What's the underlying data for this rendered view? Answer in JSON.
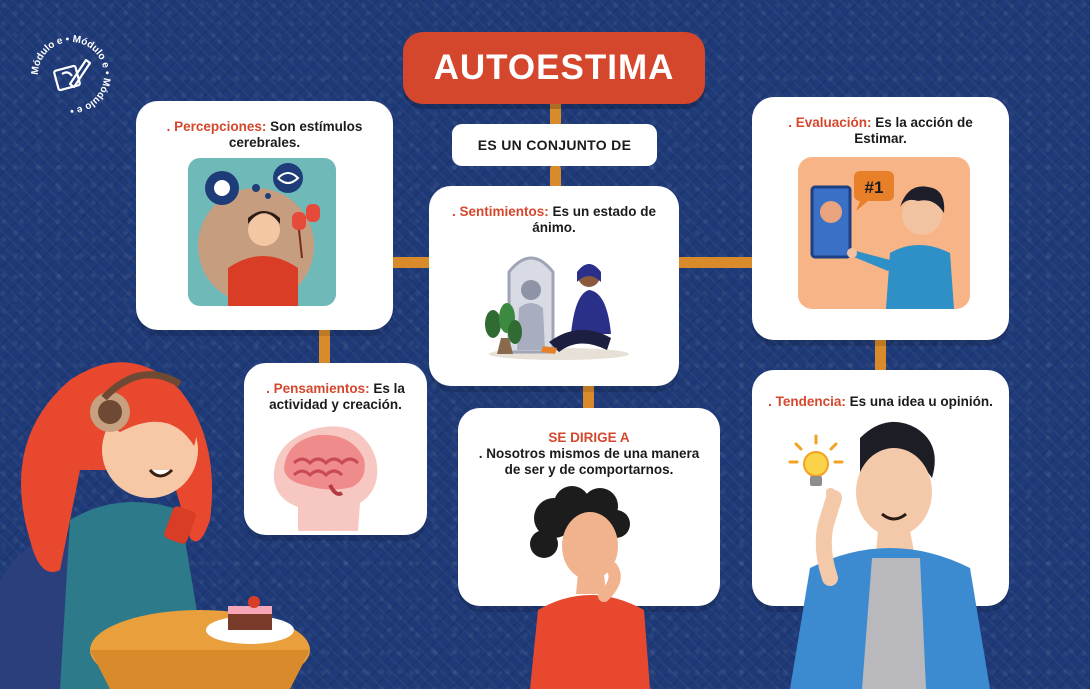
{
  "logo": {
    "text": "Módulo e • Módulo e • Módulo e •",
    "icon": "pen-and-tablet-icon"
  },
  "title": "AUTOESTIMA",
  "connector_label": "ES UN CONJUNTO DE",
  "cards": {
    "percepciones": {
      "term": ". Percepciones:",
      "text": " Son estímulos cerebrales."
    },
    "sentimientos": {
      "term": ". Sentimientos:",
      "text": " Es un estado de ánimo."
    },
    "evaluacion": {
      "term": ". Evaluación:",
      "text": " Es la acción de Estimar.",
      "badge": "#1"
    },
    "pensamientos": {
      "term": ". Pensamientos:",
      "text": " Es la actividad y creación."
    },
    "se_dirige": {
      "heading": "SE DIRIGE A",
      "text": ". Nosotros mismos de una manera de ser y de comportarnos."
    },
    "tendencia": {
      "term": ". Tendencia:",
      "text": " Es una idea u opinión."
    }
  },
  "colors": {
    "background": "#1f3a78",
    "accent": "#d5472c",
    "connector": "#d98a2b",
    "card": "#ffffff"
  }
}
